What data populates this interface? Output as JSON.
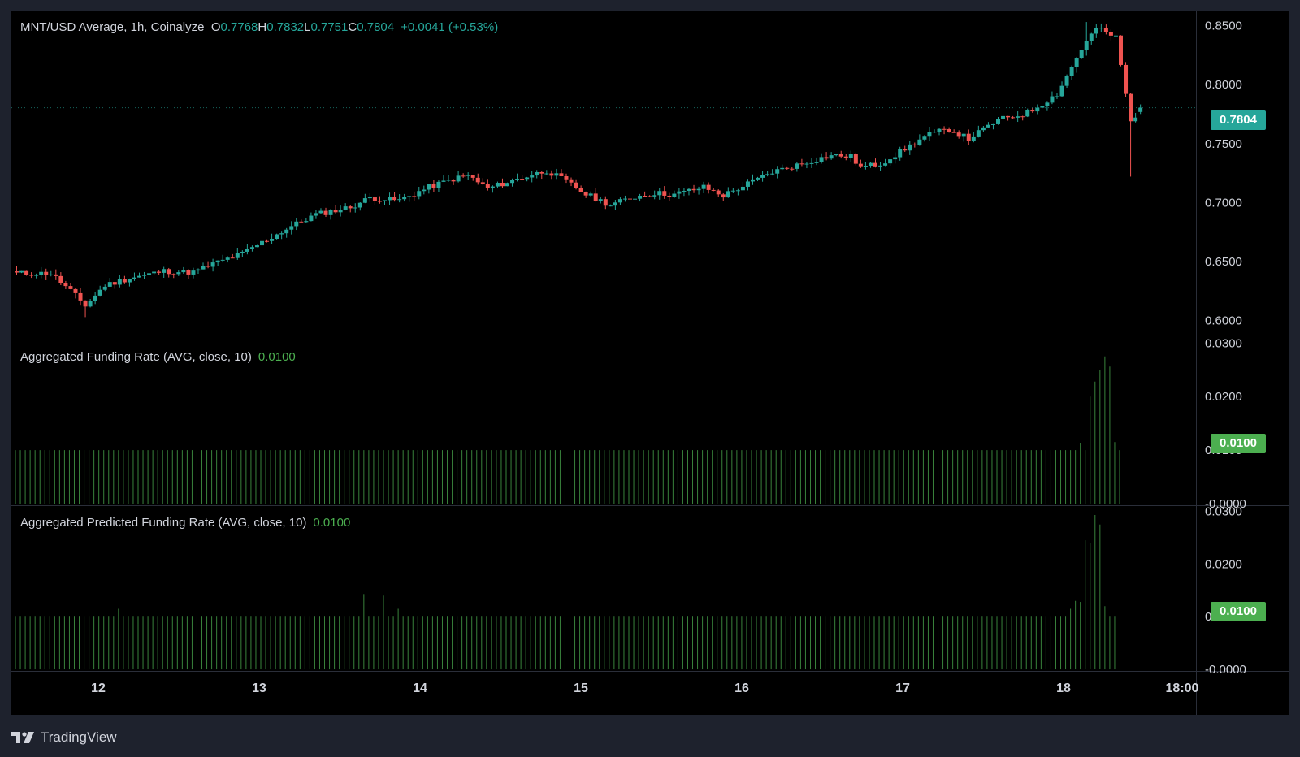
{
  "header": {
    "symbol_line": "MNT/USD Average, 1h, Coinalyze",
    "open_key": "O",
    "open": "0.7768",
    "high_key": "H",
    "high": "0.7832",
    "low_key": "L",
    "low": "0.7751",
    "close_key": "C",
    "close": "0.7804",
    "change": "+0.0041 (+0.53%)"
  },
  "indicators": {
    "funding": {
      "label": "Aggregated Funding Rate (AVG, close, 10)",
      "value": "0.0100",
      "tag": "0.0100"
    },
    "predicted": {
      "label": "Aggregated Predicted Funding Rate (AVG, close, 10)",
      "value": "0.0100",
      "tag": "0.0100"
    }
  },
  "price_tag": "0.7804",
  "branding": "TradingView",
  "colors": {
    "up": "#26a69a",
    "down": "#ef5350",
    "background": "#000000",
    "frame": "#1e222d",
    "funding_bar": "#4caf50",
    "axis_text": "#d1d4dc",
    "price_tag_bg": "#26a69a",
    "indicator_tag_bg": "#4caf50"
  },
  "chart_data": [
    {
      "type": "candlestick",
      "title": "MNT/USD Average, 1h, Coinalyze",
      "x_ticks": [
        "12",
        "13",
        "14",
        "15",
        "16",
        "17",
        "18",
        "18:00"
      ],
      "y_ticks": [
        "0.8500",
        "0.8000",
        "0.7500",
        "0.7000",
        "0.6500",
        "0.6000"
      ],
      "ylim": [
        0.584,
        0.862
      ],
      "interval": "1h",
      "anchors_close": [
        [
          0,
          0.64
        ],
        [
          7,
          0.64
        ],
        [
          11,
          0.625
        ],
        [
          14,
          0.613
        ],
        [
          18,
          0.63
        ],
        [
          23,
          0.636
        ],
        [
          30,
          0.642
        ],
        [
          36,
          0.641
        ],
        [
          40,
          0.648
        ],
        [
          46,
          0.657
        ],
        [
          56,
          0.68
        ],
        [
          61,
          0.69
        ],
        [
          68,
          0.696
        ],
        [
          72,
          0.704
        ],
        [
          78,
          0.702
        ],
        [
          84,
          0.713
        ],
        [
          89,
          0.72
        ],
        [
          92,
          0.723
        ],
        [
          96,
          0.712
        ],
        [
          102,
          0.72
        ],
        [
          108,
          0.727
        ],
        [
          112,
          0.718
        ],
        [
          116,
          0.707
        ],
        [
          121,
          0.698
        ],
        [
          126,
          0.705
        ],
        [
          130,
          0.708
        ],
        [
          134,
          0.707
        ],
        [
          140,
          0.713
        ],
        [
          144,
          0.706
        ],
        [
          149,
          0.716
        ],
        [
          154,
          0.726
        ],
        [
          160,
          0.733
        ],
        [
          166,
          0.74
        ],
        [
          170,
          0.739
        ],
        [
          172,
          0.73
        ],
        [
          176,
          0.733
        ],
        [
          180,
          0.743
        ],
        [
          186,
          0.758
        ],
        [
          190,
          0.762
        ],
        [
          194,
          0.754
        ],
        [
          200,
          0.77
        ],
        [
          206,
          0.776
        ],
        [
          212,
          0.792
        ],
        [
          217,
          0.83
        ],
        [
          220,
          0.848
        ],
        [
          224,
          0.84
        ],
        [
          227,
          0.768
        ],
        [
          229,
          0.7804
        ]
      ],
      "last_candle": {
        "open": 0.7768,
        "high": 0.7832,
        "low": 0.7751,
        "close": 0.7804
      }
    },
    {
      "type": "bar",
      "title": "Aggregated Funding Rate (AVG, close, 10)",
      "y_ticks": [
        "0.0300",
        "0.0200",
        "0.0100",
        "-0.0000"
      ],
      "ylim": [
        -0.0003,
        0.0305
      ],
      "baseline": 0.01,
      "dips": [
        [
          112,
          0.0093
        ]
      ],
      "tail_values": [
        [
          217,
          0.0113
        ],
        [
          219,
          0.02
        ],
        [
          220,
          0.0228
        ],
        [
          221,
          0.025
        ],
        [
          222,
          0.0275
        ],
        [
          223,
          0.0256
        ],
        [
          224,
          0.0115
        ],
        [
          225,
          0.01
        ]
      ]
    },
    {
      "type": "bar",
      "title": "Aggregated Predicted Funding Rate (AVG, close, 10)",
      "y_ticks": [
        "0.0300",
        "0.0200",
        "0.0100",
        "-0.0000"
      ],
      "ylim": [
        -0.0003,
        0.031
      ],
      "baseline": 0.01,
      "spikes": [
        [
          21,
          0.0115
        ],
        [
          71,
          0.0143
        ],
        [
          75,
          0.014
        ],
        [
          78,
          0.0115
        ]
      ],
      "tail_values": [
        [
          215,
          0.0115
        ],
        [
          216,
          0.013
        ],
        [
          217,
          0.0128
        ],
        [
          218,
          0.0245
        ],
        [
          219,
          0.024
        ],
        [
          220,
          0.0293
        ],
        [
          221,
          0.0275
        ],
        [
          222,
          0.012
        ],
        [
          223,
          0.01
        ],
        [
          224,
          0.01
        ]
      ]
    }
  ]
}
